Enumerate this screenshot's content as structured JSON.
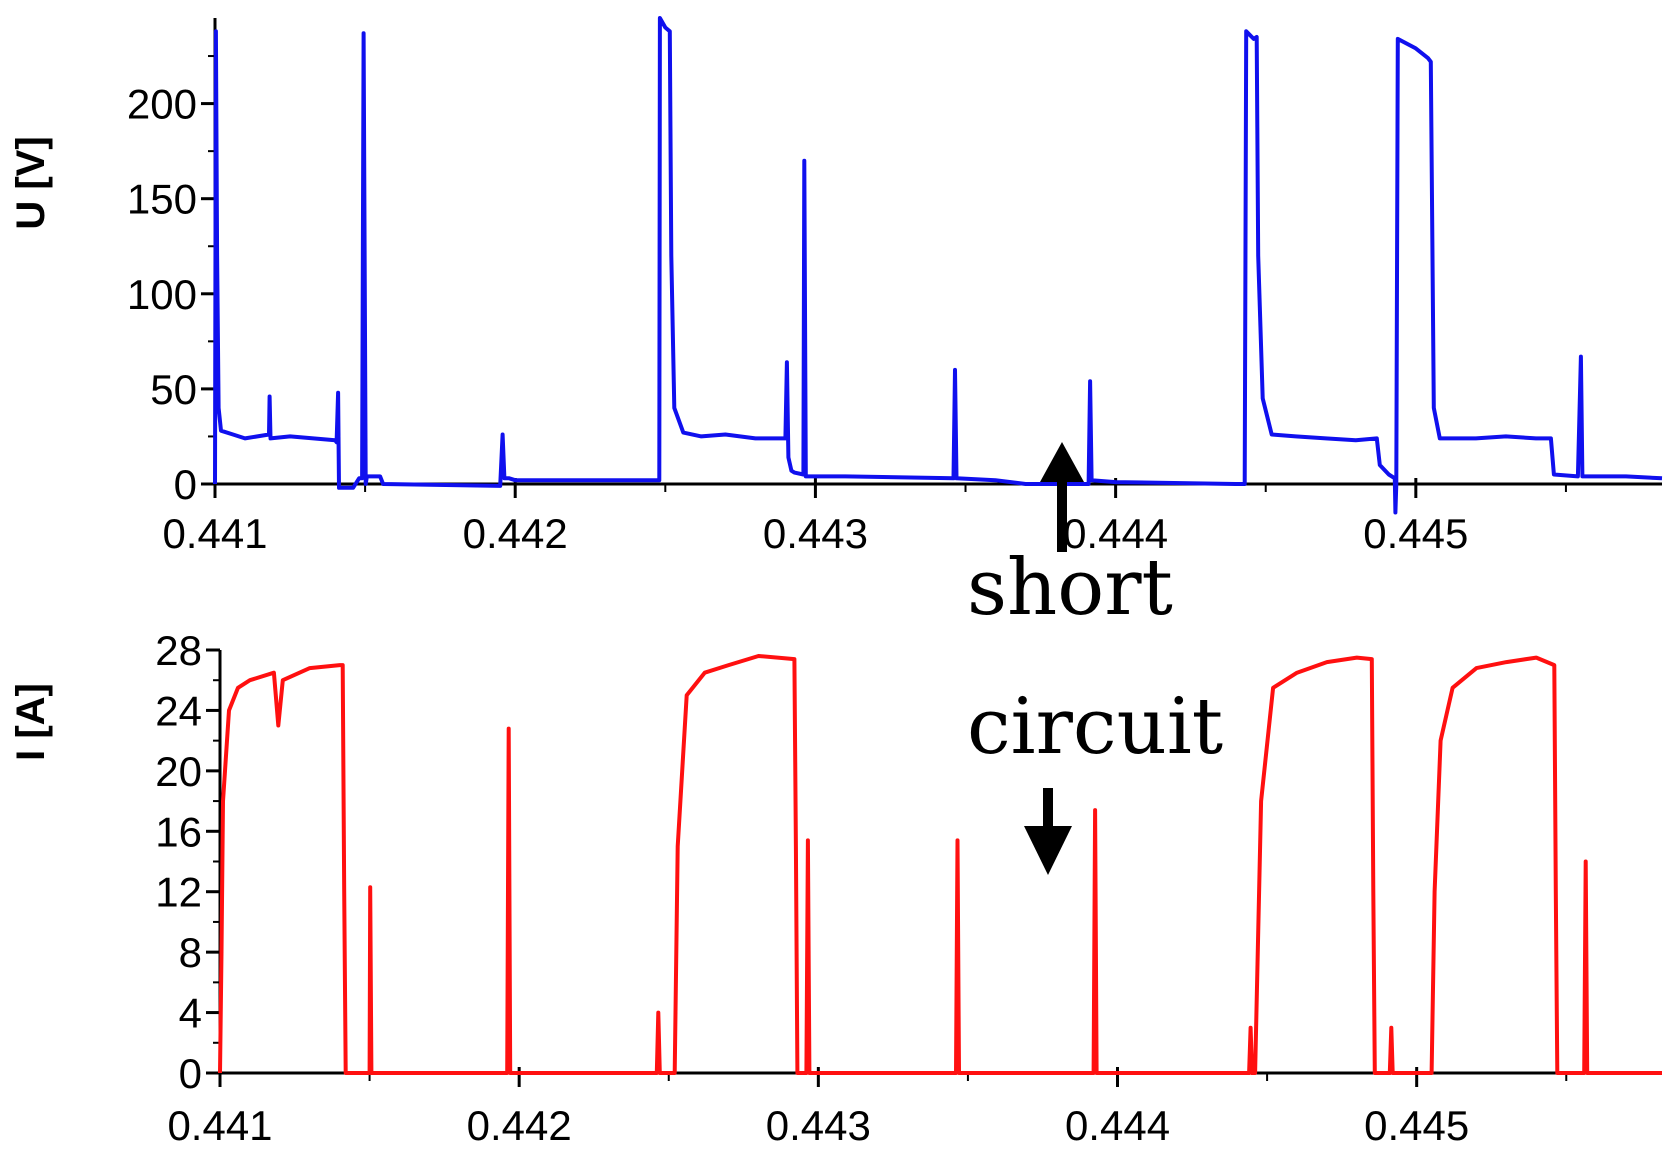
{
  "colors": {
    "voltage": "#1010ee",
    "current": "#ff1010",
    "axis": "#000000",
    "background": "#ffffff"
  },
  "chart_data": [
    {
      "type": "line",
      "id": "voltage",
      "title": "",
      "xlabel": "",
      "ylabel": "U [V]",
      "xlim": [
        0.441,
        0.44582
      ],
      "ylim": [
        0,
        245
      ],
      "grid": false,
      "x_ticks": [
        0.441,
        0.442,
        0.443,
        0.444,
        0.445
      ],
      "x_tick_labels": [
        "0.441",
        "0.442",
        "0.443",
        "0.444",
        "0.445"
      ],
      "y_ticks": [
        0,
        50,
        100,
        150,
        200
      ],
      "y_tick_labels": [
        "0",
        "50",
        "100",
        "150",
        "200"
      ],
      "series": [
        {
          "color": "#1010ee",
          "points": [
            [
              0.441,
              0
            ],
            [
              0.441003,
              238
            ],
            [
              0.441007,
              120
            ],
            [
              0.441012,
              40
            ],
            [
              0.44102,
              28
            ],
            [
              0.44106,
              26
            ],
            [
              0.4411,
              24
            ],
            [
              0.44118,
              26
            ],
            [
              0.441182,
              46
            ],
            [
              0.441185,
              24
            ],
            [
              0.44125,
              25
            ],
            [
              0.4414,
              23
            ],
            [
              0.441405,
              22
            ],
            [
              0.44141,
              48
            ],
            [
              0.441413,
              -2
            ],
            [
              0.44146,
              -2
            ],
            [
              0.44148,
              3
            ],
            [
              0.44149,
              3
            ],
            [
              0.441495,
              237
            ],
            [
              0.441502,
              0
            ],
            [
              0.441506,
              4
            ],
            [
              0.44155,
              4
            ],
            [
              0.44156,
              0
            ],
            [
              0.44195,
              -1
            ],
            [
              0.441958,
              26
            ],
            [
              0.441964,
              3
            ],
            [
              0.44198,
              3
            ],
            [
              0.442,
              2
            ],
            [
              0.4423,
              2
            ],
            [
              0.44248,
              2
            ],
            [
              0.442482,
              245
            ],
            [
              0.4425,
              240
            ],
            [
              0.442515,
              238
            ],
            [
              0.44252,
              120
            ],
            [
              0.44253,
              40
            ],
            [
              0.44256,
              27
            ],
            [
              0.44262,
              25
            ],
            [
              0.4427,
              26
            ],
            [
              0.4428,
              24
            ],
            [
              0.4429,
              24
            ],
            [
              0.442905,
              64
            ],
            [
              0.44291,
              14
            ],
            [
              0.44292,
              7
            ],
            [
              0.44293,
              6
            ],
            [
              0.44296,
              5
            ],
            [
              0.442963,
              170
            ],
            [
              0.442968,
              4
            ],
            [
              0.4431,
              4
            ],
            [
              0.44346,
              3
            ],
            [
              0.443465,
              60
            ],
            [
              0.44347,
              3
            ],
            [
              0.4436,
              2
            ],
            [
              0.4437,
              0
            ],
            [
              0.44385,
              0
            ],
            [
              0.44391,
              0
            ],
            [
              0.443915,
              54
            ],
            [
              0.44392,
              2
            ],
            [
              0.444,
              1
            ],
            [
              0.4444,
              0
            ],
            [
              0.44443,
              0
            ],
            [
              0.444435,
              238
            ],
            [
              0.44446,
              234
            ],
            [
              0.44447,
              235
            ],
            [
              0.444475,
              120
            ],
            [
              0.44449,
              45
            ],
            [
              0.44452,
              26
            ],
            [
              0.4446,
              25
            ],
            [
              0.4447,
              24
            ],
            [
              0.4448,
              23
            ],
            [
              0.44487,
              24
            ],
            [
              0.44488,
              10
            ],
            [
              0.44491,
              5
            ],
            [
              0.44493,
              3
            ],
            [
              0.444932,
              -15
            ],
            [
              0.444935,
              0
            ],
            [
              0.44494,
              234
            ],
            [
              0.445,
              229
            ],
            [
              0.44504,
              224
            ],
            [
              0.44505,
              222
            ],
            [
              0.44506,
              40
            ],
            [
              0.44508,
              24
            ],
            [
              0.4452,
              24
            ],
            [
              0.4453,
              25
            ],
            [
              0.4454,
              24
            ],
            [
              0.44545,
              24
            ],
            [
              0.44546,
              5
            ],
            [
              0.44554,
              4
            ],
            [
              0.44555,
              67
            ],
            [
              0.445555,
              4
            ],
            [
              0.4457,
              4
            ],
            [
              0.44582,
              3
            ]
          ]
        }
      ]
    },
    {
      "type": "line",
      "id": "current",
      "title": "",
      "xlabel": "",
      "ylabel": "I [A]",
      "xlim": [
        0.441,
        0.44582
      ],
      "ylim": [
        0,
        28
      ],
      "grid": false,
      "x_ticks": [
        0.441,
        0.442,
        0.443,
        0.444,
        0.445
      ],
      "x_tick_labels": [
        "0.441",
        "0.442",
        "0.443",
        "0.444",
        "0.445"
      ],
      "y_ticks": [
        0,
        4,
        8,
        12,
        16,
        20,
        24,
        28
      ],
      "y_tick_labels": [
        "0",
        "4",
        "8",
        "12",
        "16",
        "20",
        "24",
        "28"
      ],
      "series": [
        {
          "color": "#ff1010",
          "points": [
            [
              0.441,
              0
            ],
            [
              0.441005,
              8
            ],
            [
              0.44101,
              18
            ],
            [
              0.44103,
              24
            ],
            [
              0.44106,
              25.5
            ],
            [
              0.4411,
              26
            ],
            [
              0.44118,
              26.5
            ],
            [
              0.441195,
              23
            ],
            [
              0.44121,
              26
            ],
            [
              0.4413,
              26.8
            ],
            [
              0.4414,
              27
            ],
            [
              0.44141,
              27
            ],
            [
              0.441415,
              12
            ],
            [
              0.44142,
              0
            ],
            [
              0.4415,
              0
            ],
            [
              0.441502,
              12.3
            ],
            [
              0.441506,
              0
            ],
            [
              0.44196,
              0
            ],
            [
              0.441965,
              22.8
            ],
            [
              0.44197,
              0
            ],
            [
              0.44246,
              0
            ],
            [
              0.442465,
              4
            ],
            [
              0.44247,
              0
            ],
            [
              0.44252,
              0
            ],
            [
              0.44253,
              15
            ],
            [
              0.44256,
              25
            ],
            [
              0.44262,
              26.5
            ],
            [
              0.4427,
              27
            ],
            [
              0.4428,
              27.6
            ],
            [
              0.44292,
              27.4
            ],
            [
              0.442925,
              15
            ],
            [
              0.44293,
              0
            ],
            [
              0.44296,
              0
            ],
            [
              0.442965,
              15.4
            ],
            [
              0.44297,
              0
            ],
            [
              0.44346,
              0
            ],
            [
              0.443465,
              15.4
            ],
            [
              0.44347,
              0
            ],
            [
              0.44392,
              0
            ],
            [
              0.443925,
              17.4
            ],
            [
              0.44393,
              0
            ],
            [
              0.44444,
              0
            ],
            [
              0.444445,
              3
            ],
            [
              0.44445,
              0
            ],
            [
              0.44446,
              0
            ],
            [
              0.44448,
              18
            ],
            [
              0.44452,
              25.5
            ],
            [
              0.4446,
              26.5
            ],
            [
              0.4447,
              27.2
            ],
            [
              0.4448,
              27.5
            ],
            [
              0.44485,
              27.4
            ],
            [
              0.444855,
              12
            ],
            [
              0.44486,
              0
            ],
            [
              0.44491,
              0
            ],
            [
              0.444915,
              3
            ],
            [
              0.44492,
              0
            ],
            [
              0.44505,
              0
            ],
            [
              0.44506,
              12
            ],
            [
              0.44508,
              22
            ],
            [
              0.44512,
              25.5
            ],
            [
              0.4452,
              26.8
            ],
            [
              0.4453,
              27.2
            ],
            [
              0.4454,
              27.5
            ],
            [
              0.44546,
              27
            ],
            [
              0.445465,
              12
            ],
            [
              0.44547,
              0
            ],
            [
              0.44556,
              0
            ],
            [
              0.445565,
              14
            ],
            [
              0.44557,
              0
            ],
            [
              0.44582,
              0
            ]
          ]
        }
      ]
    }
  ],
  "annotations": {
    "upper": "short",
    "lower": "circuit"
  }
}
